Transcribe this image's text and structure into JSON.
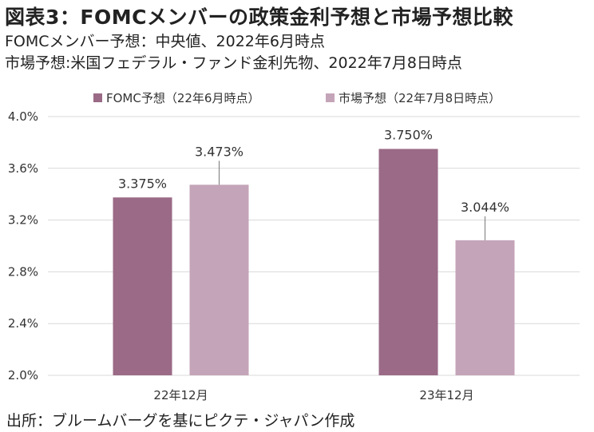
{
  "title": "図表3：FOMCメンバーの政策金利予想と市場予想比較",
  "subtitle1": "FOMCメンバー予想：中央値、2022年6月時点",
  "subtitle2": "市場予想:米国フェデラル・ファンド金利先物、2022年7月8日時点",
  "source": "出所：ブルームバーグを基にピクテ・ジャパン作成",
  "colors": {
    "fomc": "#9a6a86",
    "market": "#c4a4b8",
    "grid": "#d9d9d9",
    "leader": "#888888"
  },
  "chart_data": {
    "type": "bar",
    "categories": [
      "22年12月",
      "23年12月"
    ],
    "series": [
      {
        "name": "FOMC予想（22年6月時点）",
        "values": [
          3.375,
          3.75
        ],
        "labels": [
          "3.375%",
          "3.750%"
        ]
      },
      {
        "name": "市場予想（22年7月8日時点）",
        "values": [
          3.473,
          3.044
        ],
        "labels": [
          "3.473%",
          "3.044%"
        ]
      }
    ],
    "ylim": [
      2.0,
      4.0
    ],
    "yticks": [
      "2.0%",
      "2.4%",
      "2.8%",
      "3.2%",
      "3.6%",
      "4.0%"
    ],
    "ytick_values": [
      2.0,
      2.4,
      2.8,
      3.2,
      3.6,
      4.0
    ],
    "grid": true,
    "legend": "top"
  }
}
